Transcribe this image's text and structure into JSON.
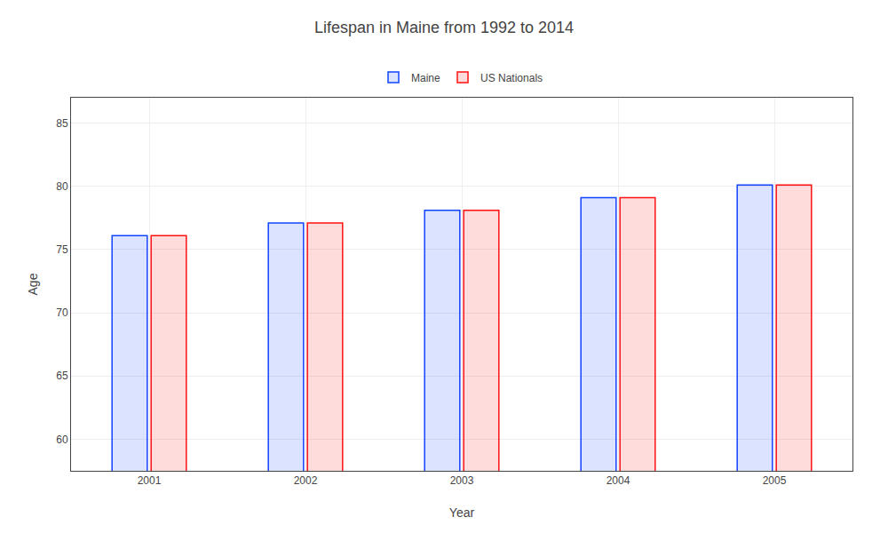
{
  "chart_data": {
    "type": "bar",
    "title": "Lifespan in Maine from 1992 to 2014",
    "xlabel": "Year",
    "ylabel": "Age",
    "categories": [
      "2001",
      "2002",
      "2003",
      "2004",
      "2005"
    ],
    "series": [
      {
        "name": "Maine",
        "color": "#1144ff",
        "values": [
          76.1,
          77.1,
          78.1,
          79.1,
          80.1
        ]
      },
      {
        "name": "US Nationals",
        "color": "#ff1111",
        "values": [
          76.1,
          77.1,
          78.1,
          79.1,
          80.1
        ]
      }
    ],
    "ylim": [
      57.5,
      87
    ],
    "yticks": [
      60,
      65,
      70,
      75,
      80,
      85
    ],
    "grid": true,
    "legend": "top"
  }
}
